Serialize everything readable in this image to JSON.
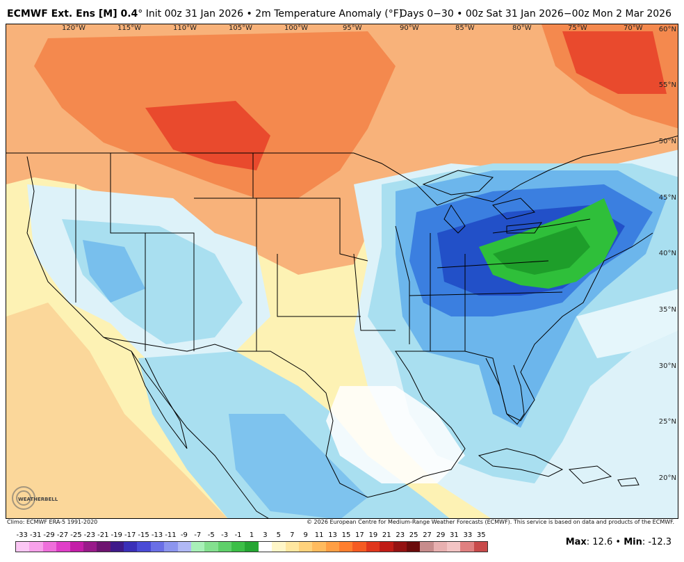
{
  "header": {
    "model": "ECMWF Ext. Ens [M] 0.4",
    "init": "° Init 00z 31 Jan 2026 • 2m Temperature Anomaly (°F)",
    "range": "Days 0−30 • 00z Sat 31 Jan 2026−00z Mon 2 Mar 2026"
  },
  "map": {
    "lon_labels": [
      "120°W",
      "115°W",
      "110°W",
      "105°W",
      "100°W",
      "95°W",
      "90°W",
      "85°W",
      "80°W",
      "75°W",
      "70°W"
    ],
    "lat_labels": [
      "60°N",
      "55°N",
      "50°N",
      "45°N",
      "40°N",
      "35°N",
      "30°N",
      "25°N",
      "20°N"
    ],
    "colors": {
      "warm_strong": "#e8442a",
      "warm": "#f4894e",
      "warm_light": "#f8b27a",
      "warm_pale": "#fbd79a",
      "neutral_warm": "#fdf2b4",
      "neutral": "#ffffff",
      "cool_pale": "#ddf2f9",
      "cool_light": "#a9dff0",
      "cool": "#6cb6ec",
      "cool_strong": "#3b7fe0",
      "cold": "#2250c8",
      "green": "#2fbf3a",
      "green_dark": "#1e9e2a"
    }
  },
  "logo": {
    "text": "WEATHERBELL"
  },
  "footer": {
    "climo": "Climo: ECMWF ERA-5 1991-2020",
    "copyright": "© 2026 European Centre for Medium-Range Weather Forecasts (ECMWF). This service is based on data and products of the ECMWF."
  },
  "legend": {
    "ticks": [
      "-33",
      "-31",
      "-29",
      "-27",
      "-25",
      "-23",
      "-21",
      "-19",
      "-17",
      "-15",
      "-13",
      "-11",
      "-9",
      "-7",
      "-5",
      "-3",
      "-1",
      "1",
      "3",
      "5",
      "7",
      "9",
      "11",
      "13",
      "15",
      "17",
      "19",
      "21",
      "23",
      "25",
      "27",
      "29",
      "31",
      "33",
      "35"
    ],
    "colors": [
      "#fbc6f4",
      "#f7a1ea",
      "#ef6fdb",
      "#e03ec8",
      "#c41ea8",
      "#991a8a",
      "#6e1470",
      "#3f1a8a",
      "#3a2fb8",
      "#4a4bd6",
      "#6a6fe6",
      "#8c95ef",
      "#b0b8f5",
      "#a8f0b8",
      "#84e08f",
      "#5fd06a",
      "#3cbf47",
      "#25a633",
      "#ffffff",
      "#fff6c8",
      "#ffe7a0",
      "#ffd27c",
      "#ffbb5e",
      "#ff9f44",
      "#ff7e2e",
      "#f55b22",
      "#e0361c",
      "#c01c16",
      "#941212",
      "#6b0c0c",
      "#c78c8c",
      "#e8b0b0",
      "#f3c4c4",
      "#e08080",
      "#c84a4a"
    ]
  },
  "stats": {
    "max_label": "Max",
    "max_value": ": 12.6 • ",
    "min_label": "Min",
    "min_value": ": -12.3"
  }
}
